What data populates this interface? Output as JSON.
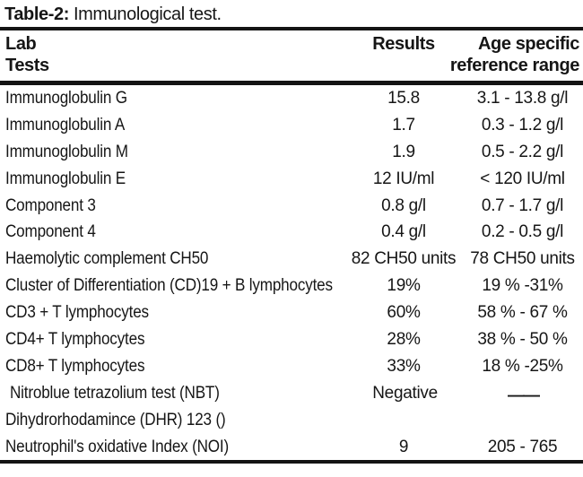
{
  "page": {
    "background": "#ffffff",
    "text_color": "#161616",
    "rule_color": "#141414"
  },
  "title": {
    "label": "Table-2:",
    "text": "Immunological test."
  },
  "table": {
    "header": {
      "col1_line1": "Lab",
      "col1_line2": "Tests",
      "col2_line1": "Results",
      "col3_line1": "Age specific",
      "col3_line2": "reference range"
    },
    "rows": [
      {
        "test": "Immunoglobulin G",
        "result": "15.8",
        "range": "3.1 - 13.8 g/l"
      },
      {
        "test": "Immunoglobulin A",
        "result": "1.7",
        "range": "0.3 - 1.2 g/l"
      },
      {
        "test": "Immunoglobulin M",
        "result": "1.9",
        "range": "0.5 - 2.2 g/l"
      },
      {
        "test": "Immunoglobulin E",
        "result": "12 IU/ml",
        "range": "< 120 IU/ml"
      },
      {
        "test": "Component 3",
        "result": "0.8 g/l",
        "range": "0.7 - 1.7 g/l"
      },
      {
        "test": "Component 4",
        "result": "0.4 g/l",
        "range": "0.2 - 0.5 g/l"
      },
      {
        "test": "Haemolytic complement CH50",
        "result": "82 CH50 units",
        "range": "78 CH50 units"
      },
      {
        "test": "Cluster of Differentiation (CD)19 + B lymphocytes",
        "result": "19%",
        "range": "19 % -31%"
      },
      {
        "test": "CD3 + T lymphocytes",
        "result": "60%",
        "range": "58 % - 67 %"
      },
      {
        "test": "CD4+ T lymphocytes",
        "result": "28%",
        "range": "38 % - 50 %"
      },
      {
        "test": "CD8+ T lymphocytes",
        "result": "33%",
        "range": "18 % -25%"
      },
      {
        "test": "Nitroblue tetrazolium test (NBT)",
        "result": "Negative",
        "range": "——"
      },
      {
        "test": "Dihydrorhodamince (DHR) 123 ()",
        "result": "",
        "range": ""
      },
      {
        "test": "Neutrophil's oxidative Index (NOI)",
        "result": "9",
        "range": "205 - 765"
      }
    ]
  }
}
